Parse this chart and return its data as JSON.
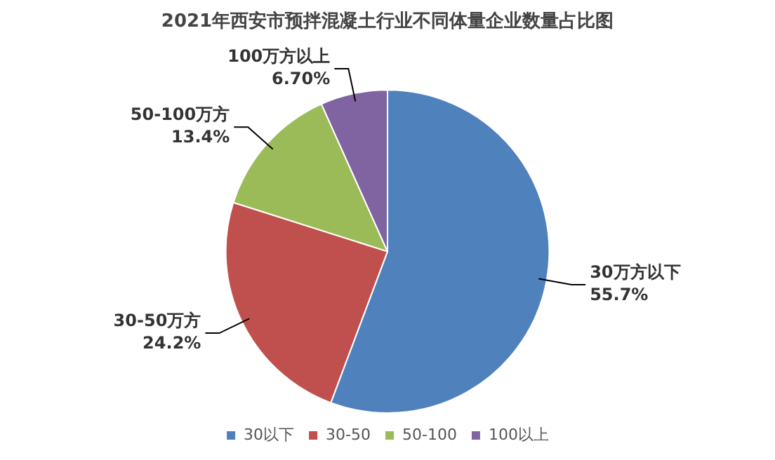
{
  "chart_data": {
    "type": "pie",
    "title": "2021年西安市预拌混凝土行业不同体量企业数量占比图",
    "categories": [
      "30以下",
      "30-50",
      "50-100",
      "100以上"
    ],
    "values": [
      55.7,
      24.2,
      13.4,
      6.7
    ],
    "colors": [
      "#4f81bd",
      "#c0504d",
      "#9bbb59",
      "#8064a2"
    ],
    "value_labels": [
      "55.7%",
      "24.2%",
      "13.4%",
      "6.70%"
    ],
    "annotations": [
      "30万方以下",
      "30-50万方",
      "50-100万方",
      "100万方以上"
    ],
    "legend": "bottom"
  }
}
